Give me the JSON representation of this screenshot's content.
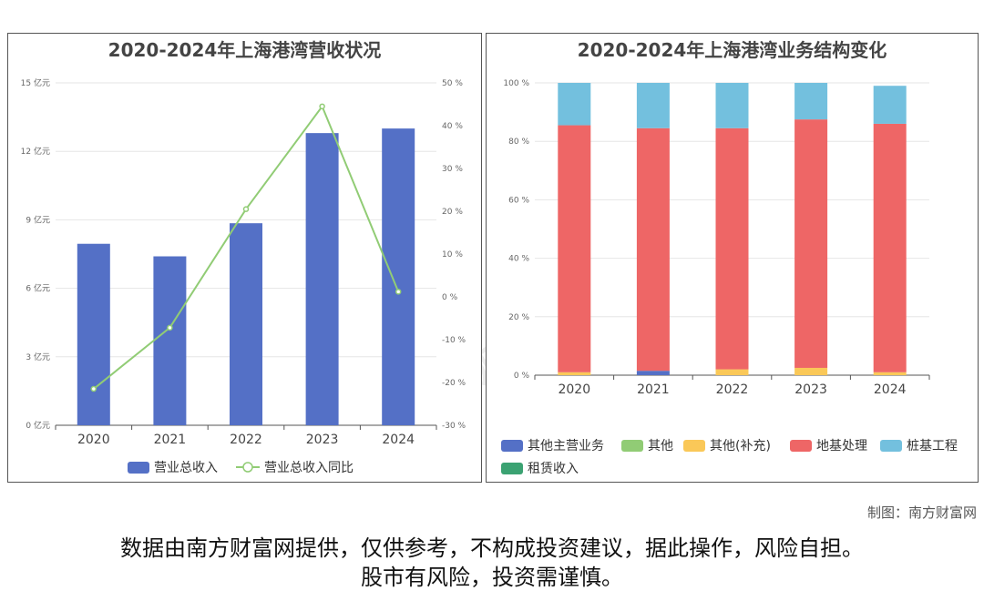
{
  "watermark": "南方财富网",
  "credit": "制图：南方财富网",
  "disclaimer": [
    "数据由南方财富网提供，仅供参考，不构成投资建议，据此操作，风险自担。",
    "股市有风险，投资需谨慎。"
  ],
  "chart_data": [
    {
      "type": "bar",
      "title": "2020-2024年上海港湾营收状况",
      "categories": [
        "2020",
        "2021",
        "2022",
        "2023",
        "2024"
      ],
      "left_axis": {
        "ticks": [
          "0 亿元",
          "3 亿元",
          "6 亿元",
          "9 亿元",
          "12 亿元",
          "15 亿元"
        ],
        "ylim": [
          0,
          15
        ]
      },
      "right_axis": {
        "ticks": [
          "-30 %",
          "-20 %",
          "-10 %",
          "0 %",
          "10 %",
          "20 %",
          "30 %",
          "40 %",
          "50 %"
        ],
        "ylim": [
          -30,
          50
        ]
      },
      "series": [
        {
          "name": "营业总收入",
          "type": "bar",
          "axis": "left",
          "color": "#5470c6",
          "values": [
            7.95,
            7.4,
            8.85,
            12.8,
            13.0
          ]
        },
        {
          "name": "营业总收入同比",
          "type": "line",
          "axis": "right",
          "color": "#91cc75",
          "values": [
            -21.5,
            -7.2,
            20.5,
            44.5,
            1.2
          ]
        }
      ],
      "grid": true,
      "legend": "bottom"
    },
    {
      "type": "bar",
      "stacked": true,
      "title": "2020-2024年上海港湾业务结构变化",
      "categories": [
        "2020",
        "2021",
        "2022",
        "2023",
        "2024"
      ],
      "y_axis": {
        "ticks": [
          "0 %",
          "20 %",
          "40 %",
          "60 %",
          "80 %",
          "100 %"
        ],
        "ylim": [
          0,
          100
        ]
      },
      "series": [
        {
          "name": "其他主营业务",
          "color": "#5470c6",
          "values": [
            0,
            1.5,
            0,
            0,
            0
          ]
        },
        {
          "name": "其他",
          "color": "#91cc75",
          "values": [
            0,
            0,
            0,
            0,
            0
          ]
        },
        {
          "name": "其他(补充)",
          "color": "#fac858",
          "values": [
            1.0,
            0,
            2.0,
            2.5,
            1.0
          ]
        },
        {
          "name": "地基处理",
          "color": "#ee6666",
          "values": [
            84.5,
            83.0,
            82.5,
            85.0,
            85.0
          ]
        },
        {
          "name": "桩基工程",
          "color": "#73c0de",
          "values": [
            14.5,
            15.5,
            15.5,
            12.5,
            13.0
          ]
        },
        {
          "name": "租赁收入",
          "color": "#3ba272",
          "values": [
            0,
            0,
            0,
            0,
            0
          ]
        }
      ],
      "grid": true,
      "legend": "bottom"
    }
  ]
}
